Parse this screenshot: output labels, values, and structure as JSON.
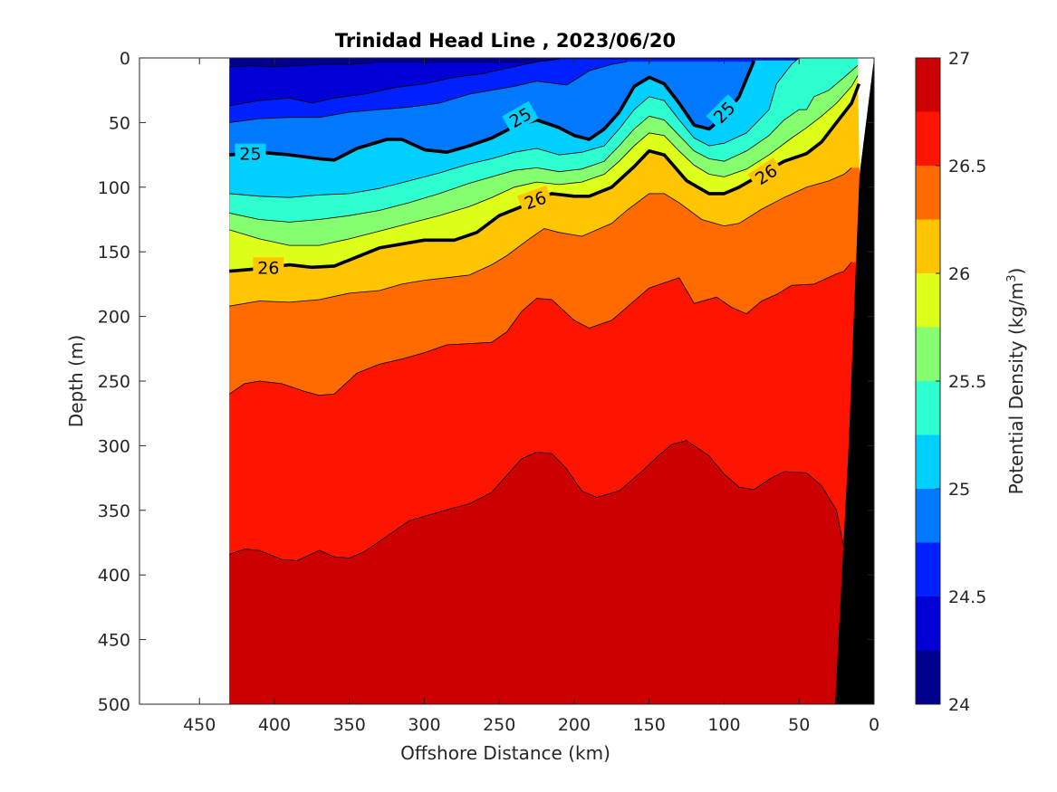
{
  "chart_data": {
    "type": "contour",
    "title": "Trinidad Head Line , 2023/06/20",
    "xlabel": "Offshore Distance (km)",
    "ylabel": "Depth (m)",
    "xlim": [
      490,
      0
    ],
    "ylim": [
      0,
      500
    ],
    "x_reversed": true,
    "y_reversed": true,
    "x_ticks": [
      450,
      400,
      350,
      300,
      250,
      200,
      150,
      100,
      50,
      0
    ],
    "x_tick_labels": [
      "450",
      "400",
      "350",
      "300",
      "250",
      "200",
      "150",
      "100",
      "50",
      "0"
    ],
    "y_ticks": [
      0,
      50,
      100,
      150,
      200,
      250,
      300,
      350,
      400,
      450,
      500
    ],
    "y_tick_labels": [
      "0",
      "50",
      "100",
      "150",
      "200",
      "250",
      "300",
      "350",
      "400",
      "450",
      "500"
    ],
    "data_extent_x": [
      430,
      0
    ],
    "colorbar": {
      "label": "Potential Density (kg/m",
      "label_superscript": "3",
      "label_suffix": ")",
      "range": [
        24,
        27
      ],
      "ticks": [
        24,
        24.5,
        25,
        25.5,
        26,
        26.5,
        27
      ],
      "tick_labels": [
        "24",
        "24.5",
        "25",
        "25.5",
        "26",
        "26.5",
        "27"
      ],
      "levels": [
        {
          "from": 24.0,
          "to": 24.25,
          "color": "#00008f"
        },
        {
          "from": 24.25,
          "to": 24.5,
          "color": "#0000d6"
        },
        {
          "from": 24.5,
          "to": 24.75,
          "color": "#0021ff"
        },
        {
          "from": 24.75,
          "to": 25.0,
          "color": "#0078ff"
        },
        {
          "from": 25.0,
          "to": 25.25,
          "color": "#00d0ff"
        },
        {
          "from": 25.25,
          "to": 25.5,
          "color": "#2dffd0"
        },
        {
          "from": 25.5,
          "to": 25.75,
          "color": "#85ff70"
        },
        {
          "from": 25.75,
          "to": 26.0,
          "color": "#ddff1a"
        },
        {
          "from": 26.0,
          "to": 26.25,
          "color": "#ffc500"
        },
        {
          "from": 26.25,
          "to": 26.5,
          "color": "#ff6b00"
        },
        {
          "from": 26.5,
          "to": 26.75,
          "color": "#ff1400"
        },
        {
          "from": 26.75,
          "to": 27.0,
          "color": "#cc0000"
        }
      ]
    },
    "bold_contours": [
      {
        "value": 25,
        "label": "25",
        "points": [
          [
            430,
            75
          ],
          [
            410,
            73
          ],
          [
            390,
            75
          ],
          [
            370,
            78
          ],
          [
            360,
            79
          ],
          [
            345,
            70
          ],
          [
            325,
            63
          ],
          [
            315,
            63
          ],
          [
            300,
            71
          ],
          [
            285,
            73
          ],
          [
            270,
            68
          ],
          [
            255,
            62
          ],
          [
            240,
            53
          ],
          [
            225,
            48
          ],
          [
            210,
            54
          ],
          [
            200,
            60
          ],
          [
            190,
            63
          ],
          [
            180,
            55
          ],
          [
            170,
            42
          ],
          [
            160,
            22
          ],
          [
            150,
            15
          ],
          [
            140,
            20
          ],
          [
            130,
            35
          ],
          [
            120,
            52
          ],
          [
            110,
            55
          ],
          [
            100,
            45
          ],
          [
            90,
            30
          ],
          [
            80,
            2
          ]
        ]
      },
      {
        "value": 26,
        "label": "26",
        "points": [
          [
            430,
            165
          ],
          [
            410,
            163
          ],
          [
            390,
            160
          ],
          [
            375,
            162
          ],
          [
            360,
            161
          ],
          [
            345,
            154
          ],
          [
            330,
            147
          ],
          [
            300,
            141
          ],
          [
            280,
            141
          ],
          [
            265,
            135
          ],
          [
            250,
            122
          ],
          [
            235,
            115
          ],
          [
            215,
            105
          ],
          [
            200,
            107
          ],
          [
            190,
            107
          ],
          [
            175,
            100
          ],
          [
            160,
            84
          ],
          [
            150,
            72
          ],
          [
            140,
            75
          ],
          [
            125,
            95
          ],
          [
            110,
            105
          ],
          [
            100,
            105
          ],
          [
            90,
            100
          ],
          [
            75,
            90
          ],
          [
            60,
            80
          ],
          [
            45,
            74
          ],
          [
            35,
            65
          ],
          [
            25,
            50
          ],
          [
            15,
            35
          ],
          [
            10,
            20
          ]
        ]
      }
    ],
    "isopycnals": [
      {
        "level": 24.25,
        "points": [
          [
            430,
            7
          ],
          [
            415,
            6
          ],
          [
            400,
            7
          ],
          [
            385,
            6
          ],
          [
            370,
            5
          ],
          [
            350,
            5
          ],
          [
            335,
            4
          ]
        ]
      },
      {
        "level": 24.5,
        "points": [
          [
            430,
            37
          ],
          [
            410,
            33
          ],
          [
            390,
            31
          ],
          [
            375,
            35
          ],
          [
            360,
            31
          ],
          [
            340,
            28
          ],
          [
            320,
            23
          ],
          [
            300,
            20
          ],
          [
            280,
            15
          ],
          [
            260,
            12
          ],
          [
            245,
            8
          ],
          [
            225,
            3
          ],
          [
            210,
            1
          ]
        ]
      },
      {
        "level": 24.75,
        "points": [
          [
            430,
            50
          ],
          [
            410,
            47
          ],
          [
            390,
            46
          ],
          [
            370,
            46
          ],
          [
            350,
            42
          ],
          [
            330,
            40
          ],
          [
            310,
            38
          ],
          [
            290,
            35
          ],
          [
            270,
            28
          ],
          [
            255,
            25
          ],
          [
            240,
            22
          ],
          [
            225,
            18
          ],
          [
            205,
            21
          ],
          [
            190,
            10
          ],
          [
            175,
            5
          ],
          [
            165,
            3
          ]
        ]
      },
      {
        "level": 25.25,
        "points": [
          [
            430,
            105
          ],
          [
            410,
            107
          ],
          [
            390,
            108
          ],
          [
            370,
            106
          ],
          [
            350,
            105
          ],
          [
            330,
            101
          ],
          [
            310,
            95
          ],
          [
            290,
            89
          ],
          [
            270,
            82
          ],
          [
            255,
            78
          ],
          [
            240,
            73
          ],
          [
            225,
            70
          ],
          [
            210,
            75
          ],
          [
            195,
            73
          ],
          [
            180,
            68
          ],
          [
            170,
            55
          ],
          [
            160,
            40
          ],
          [
            150,
            30
          ],
          [
            140,
            33
          ],
          [
            130,
            48
          ],
          [
            120,
            62
          ],
          [
            110,
            68
          ],
          [
            100,
            66
          ],
          [
            85,
            58
          ],
          [
            70,
            40
          ],
          [
            65,
            20
          ],
          [
            55,
            5
          ],
          [
            50,
            0
          ]
        ]
      },
      {
        "level": 25.5,
        "points": [
          [
            430,
            120
          ],
          [
            410,
            125
          ],
          [
            390,
            127
          ],
          [
            370,
            125
          ],
          [
            350,
            122
          ],
          [
            330,
            118
          ],
          [
            310,
            112
          ],
          [
            290,
            105
          ],
          [
            270,
            97
          ],
          [
            255,
            92
          ],
          [
            240,
            87
          ],
          [
            225,
            85
          ],
          [
            210,
            88
          ],
          [
            195,
            86
          ],
          [
            180,
            80
          ],
          [
            170,
            68
          ],
          [
            160,
            55
          ],
          [
            150,
            45
          ],
          [
            140,
            48
          ],
          [
            130,
            60
          ],
          [
            120,
            72
          ],
          [
            110,
            78
          ],
          [
            100,
            80
          ],
          [
            85,
            72
          ],
          [
            70,
            60
          ],
          [
            60,
            48
          ],
          [
            50,
            40
          ],
          [
            45,
            40
          ],
          [
            40,
            30
          ],
          [
            30,
            25
          ],
          [
            20,
            15
          ],
          [
            10,
            5
          ]
        ]
      },
      {
        "level": 25.75,
        "points": [
          [
            430,
            133
          ],
          [
            410,
            140
          ],
          [
            390,
            145
          ],
          [
            370,
            145
          ],
          [
            350,
            140
          ],
          [
            330,
            134
          ],
          [
            310,
            128
          ],
          [
            290,
            122
          ],
          [
            270,
            115
          ],
          [
            255,
            108
          ],
          [
            240,
            100
          ],
          [
            225,
            96
          ],
          [
            210,
            98
          ],
          [
            195,
            96
          ],
          [
            180,
            90
          ],
          [
            170,
            80
          ],
          [
            160,
            68
          ],
          [
            150,
            58
          ],
          [
            140,
            60
          ],
          [
            130,
            72
          ],
          [
            120,
            83
          ],
          [
            110,
            90
          ],
          [
            100,
            92
          ],
          [
            85,
            86
          ],
          [
            70,
            75
          ],
          [
            55,
            62
          ],
          [
            45,
            54
          ],
          [
            35,
            45
          ],
          [
            25,
            35
          ],
          [
            15,
            22
          ],
          [
            10,
            12
          ]
        ]
      },
      {
        "level": 26.25,
        "points": [
          [
            430,
            192
          ],
          [
            410,
            188
          ],
          [
            390,
            189
          ],
          [
            370,
            187
          ],
          [
            350,
            182
          ],
          [
            330,
            180
          ],
          [
            315,
            175
          ],
          [
            300,
            172
          ],
          [
            285,
            170
          ],
          [
            270,
            168
          ],
          [
            255,
            160
          ],
          [
            245,
            153
          ],
          [
            230,
            140
          ],
          [
            220,
            132
          ],
          [
            210,
            135
          ],
          [
            195,
            138
          ],
          [
            175,
            128
          ],
          [
            165,
            118
          ],
          [
            150,
            105
          ],
          [
            140,
            105
          ],
          [
            130,
            112
          ],
          [
            115,
            125
          ],
          [
            100,
            130
          ],
          [
            90,
            128
          ],
          [
            75,
            117
          ],
          [
            60,
            108
          ],
          [
            45,
            100
          ],
          [
            30,
            95
          ],
          [
            20,
            90
          ],
          [
            15,
            85
          ]
        ]
      },
      {
        "level": 26.5,
        "points": [
          [
            430,
            260
          ],
          [
            420,
            252
          ],
          [
            410,
            250
          ],
          [
            395,
            252
          ],
          [
            380,
            258
          ],
          [
            370,
            261
          ],
          [
            360,
            260
          ],
          [
            345,
            244
          ],
          [
            330,
            237
          ],
          [
            315,
            233
          ],
          [
            300,
            228
          ],
          [
            285,
            222
          ],
          [
            270,
            221
          ],
          [
            255,
            220
          ],
          [
            245,
            212
          ],
          [
            235,
            196
          ],
          [
            225,
            186
          ],
          [
            215,
            187
          ],
          [
            200,
            203
          ],
          [
            190,
            209
          ],
          [
            175,
            203
          ],
          [
            165,
            193
          ],
          [
            150,
            178
          ],
          [
            135,
            172
          ],
          [
            130,
            170
          ],
          [
            120,
            190
          ],
          [
            105,
            185
          ],
          [
            95,
            193
          ],
          [
            85,
            198
          ],
          [
            75,
            188
          ],
          [
            65,
            183
          ],
          [
            55,
            176
          ],
          [
            40,
            175
          ],
          [
            25,
            167
          ],
          [
            20,
            165
          ],
          [
            15,
            158
          ]
        ]
      },
      {
        "level": 26.75,
        "points": [
          [
            430,
            384
          ],
          [
            420,
            380
          ],
          [
            410,
            381
          ],
          [
            395,
            388
          ],
          [
            385,
            389
          ],
          [
            370,
            381
          ],
          [
            360,
            386
          ],
          [
            350,
            387
          ],
          [
            340,
            382
          ],
          [
            325,
            370
          ],
          [
            310,
            358
          ],
          [
            295,
            353
          ],
          [
            280,
            348
          ],
          [
            270,
            345
          ],
          [
            255,
            336
          ],
          [
            245,
            323
          ],
          [
            235,
            310
          ],
          [
            225,
            305
          ],
          [
            215,
            306
          ],
          [
            205,
            318
          ],
          [
            195,
            335
          ],
          [
            185,
            340
          ],
          [
            170,
            335
          ],
          [
            155,
            320
          ],
          [
            145,
            309
          ],
          [
            135,
            299
          ],
          [
            125,
            296
          ],
          [
            110,
            308
          ],
          [
            100,
            322
          ],
          [
            90,
            332
          ],
          [
            80,
            334
          ],
          [
            70,
            326
          ],
          [
            60,
            320
          ],
          [
            45,
            321
          ],
          [
            35,
            331
          ],
          [
            25,
            350
          ],
          [
            20,
            380
          ]
        ]
      }
    ]
  }
}
